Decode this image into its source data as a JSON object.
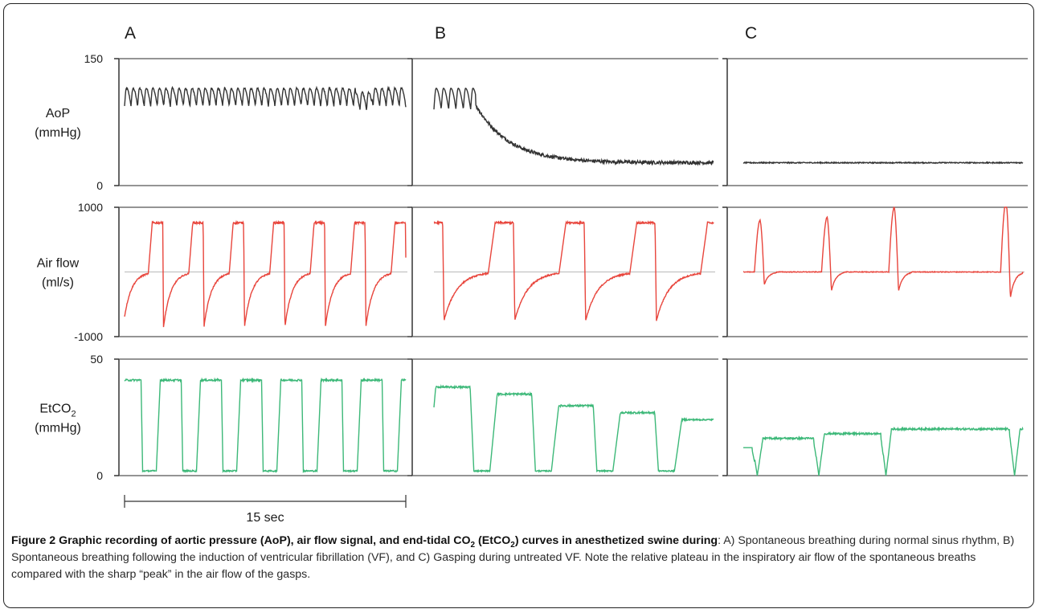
{
  "panel_labels": [
    "A",
    "B",
    "C"
  ],
  "rows": [
    {
      "label": "AoP",
      "unit": "(mmHg)",
      "y_min": 0,
      "y_max": 150,
      "tick_labels": [
        "150",
        "0"
      ],
      "color": "#333333"
    },
    {
      "label": "Air flow",
      "unit": "(ml/s)",
      "y_min": -1000,
      "y_max": 1000,
      "tick_labels": [
        "1000",
        "-1000"
      ],
      "color": "#e8453c",
      "baseline_color": "#b8b8b8"
    },
    {
      "label": "EtCO",
      "label_sub": "2",
      "unit": "(mmHg)",
      "y_min": 0,
      "y_max": 50,
      "tick_labels": [
        "50",
        "0"
      ],
      "color": "#3cb878"
    }
  ],
  "scale_bar": {
    "label": "15 sec",
    "seconds": 15
  },
  "caption": {
    "bold_parts": [
      "Figure 2 Graphic recording of aortic pressure (AoP), air flow signal, and end-tidal CO",
      "2",
      " (EtCO",
      "2",
      ") curves in anesthetized swine during"
    ],
    "text": ": A) Spontaneous breathing during normal sinus rhythm, B) Spontaneous breathing following the induction of ventricular fibrillation (VF), and C) Gasping during untreated VF. Note the relative plateau in the inspiratory air flow of the spontaneous breaths compared with the sharp “peak” in the air flow of the gasps."
  },
  "chart_data": {
    "type": "line",
    "x_unit": "sec",
    "panels": [
      {
        "name": "A",
        "AoP": {
          "pulse_range": [
            90,
            115
          ],
          "beats": 43
        },
        "Air flow": {
          "breaths": 7,
          "insp_plateau": 800,
          "exp_min": -850
        },
        "EtCO2": {
          "breaths": 7,
          "plateau": 41,
          "trough": 2
        }
      },
      {
        "name": "B",
        "AoP": {
          "start_pulse_range": [
            90,
            115
          ],
          "decay_to": 27
        },
        "Air flow": {
          "breaths": 4,
          "insp_plateau": 800,
          "exp_min": -750
        },
        "EtCO2": {
          "plateaus": [
            38,
            35,
            30,
            27,
            24
          ],
          "trough": 2
        }
      },
      {
        "name": "C",
        "AoP": {
          "value": 27
        },
        "Air flow": {
          "gasps": 4,
          "gasp_peaks": [
            800,
            850,
            1000,
            1100
          ],
          "gasp_mins": [
            -200,
            -300,
            -300,
            -400
          ]
        },
        "EtCO2": {
          "plateaus": [
            18,
            20,
            22,
            22
          ],
          "trough": 0
        }
      }
    ]
  }
}
